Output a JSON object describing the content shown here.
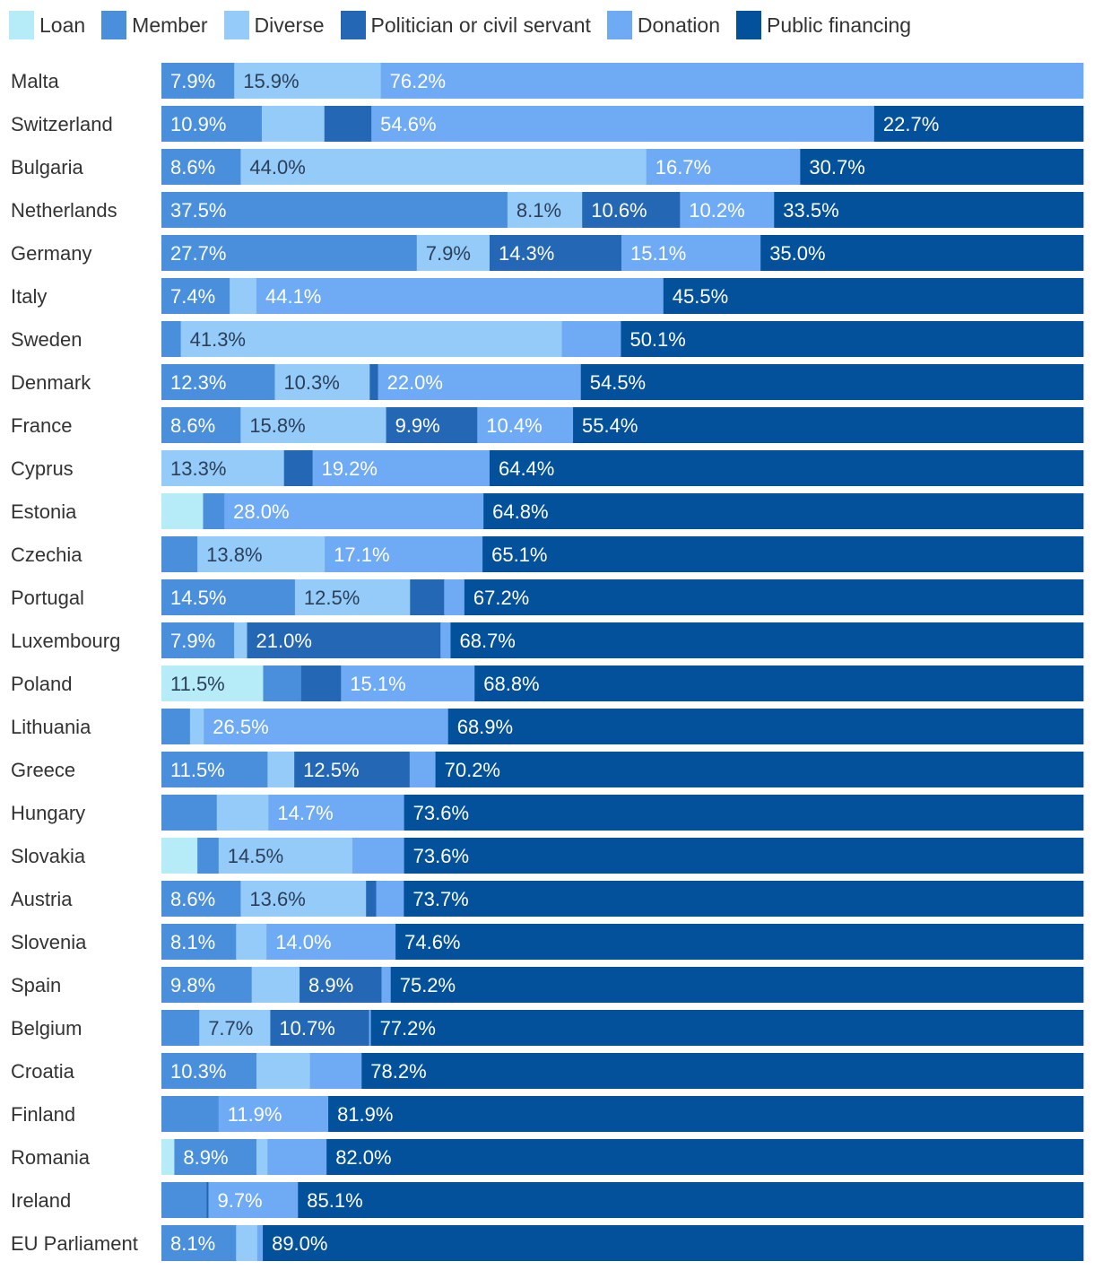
{
  "chart_data": {
    "type": "bar",
    "orientation": "horizontal",
    "stacked": true,
    "normalized_percent": true,
    "legend_position": "top-left",
    "colors": {
      "Loan": "#b5ecf8",
      "Member": "#4a8fdb",
      "Diverse": "#94cbf9",
      "Politician or civil servant": "#2468b5",
      "Donation": "#6faaf4",
      "Public financing": "#02519a"
    },
    "categories": [
      "Malta",
      "Switzerland",
      "Bulgaria",
      "Netherlands",
      "Germany",
      "Italy",
      "Sweden",
      "Denmark",
      "France",
      "Cyprus",
      "Estonia",
      "Czechia",
      "Portugal",
      "Luxembourg",
      "Poland",
      "Lithuania",
      "Greece",
      "Hungary",
      "Slovakia",
      "Austria",
      "Slovenia",
      "Spain",
      "Belgium",
      "Croatia",
      "Finland",
      "Romania",
      "Ireland",
      "EU Parliament"
    ],
    "series": [
      {
        "name": "Loan",
        "values": [
          0,
          0,
          0,
          0,
          0,
          0,
          0,
          0,
          0,
          0,
          4.5,
          0,
          0,
          0,
          11.5,
          0,
          0,
          0,
          3.9,
          0,
          0,
          0,
          0,
          0,
          0,
          1.4,
          0,
          0
        ]
      },
      {
        "name": "Member",
        "values": [
          7.9,
          10.9,
          8.6,
          37.5,
          27.7,
          7.4,
          2.1,
          12.3,
          8.6,
          0,
          2.3,
          3.9,
          14.5,
          7.9,
          4.3,
          3.1,
          11.5,
          6.0,
          2.3,
          8.6,
          8.1,
          9.8,
          4.1,
          10.3,
          6.2,
          8.9,
          4.9,
          8.1
        ]
      },
      {
        "name": "Diverse",
        "values": [
          15.9,
          6.8,
          44.0,
          8.1,
          7.9,
          2.9,
          41.3,
          10.3,
          15.8,
          13.3,
          0,
          13.8,
          12.5,
          1.4,
          0,
          1.5,
          2.9,
          5.6,
          14.5,
          13.6,
          3.3,
          5.2,
          7.7,
          5.8,
          0,
          1.2,
          0,
          2.3
        ]
      },
      {
        "name": "Politician or civil servant",
        "values": [
          0,
          5.1,
          0,
          10.6,
          14.3,
          0,
          0,
          0.9,
          9.9,
          3.1,
          0,
          0,
          3.7,
          21.0,
          4.5,
          0,
          12.5,
          0,
          0,
          1.1,
          0,
          8.9,
          10.7,
          0,
          0,
          0,
          0.2,
          0
        ]
      },
      {
        "name": "Donation",
        "values": [
          76.2,
          54.6,
          16.7,
          10.2,
          15.1,
          44.1,
          6.4,
          22.0,
          10.4,
          19.2,
          28.0,
          17.1,
          2.2,
          1.1,
          15.1,
          26.5,
          2.8,
          14.7,
          5.6,
          3.0,
          14.0,
          1.0,
          0.2,
          5.6,
          11.9,
          6.4,
          9.7,
          0.6
        ]
      },
      {
        "name": "Public financing",
        "values": [
          0,
          22.7,
          30.7,
          33.5,
          35.0,
          45.5,
          50.1,
          54.5,
          55.4,
          64.4,
          64.8,
          65.1,
          67.2,
          68.7,
          68.8,
          68.9,
          70.2,
          73.6,
          73.6,
          73.7,
          74.6,
          75.2,
          77.2,
          78.2,
          81.9,
          82.0,
          85.1,
          89.0
        ]
      }
    ],
    "data_labels": [
      [
        "",
        "7.9%",
        "15.9%",
        "",
        "76.2%",
        ""
      ],
      [
        "",
        "10.9%",
        "",
        "",
        "54.6%",
        "22.7%"
      ],
      [
        "",
        "8.6%",
        "44.0%",
        "",
        "16.7%",
        "30.7%"
      ],
      [
        "",
        "37.5%",
        "8.1%",
        "10.6%",
        "10.2%",
        "33.5%"
      ],
      [
        "",
        "27.7%",
        "7.9%",
        "14.3%",
        "15.1%",
        "35.0%"
      ],
      [
        "",
        "7.4%",
        "",
        "",
        "44.1%",
        "45.5%"
      ],
      [
        "",
        "",
        "41.3%",
        "",
        "",
        "50.1%"
      ],
      [
        "",
        "12.3%",
        "10.3%",
        "",
        "22.0%",
        "54.5%"
      ],
      [
        "",
        "8.6%",
        "15.8%",
        "9.9%",
        "10.4%",
        "55.4%"
      ],
      [
        "",
        "",
        "13.3%",
        "",
        "19.2%",
        "64.4%"
      ],
      [
        "",
        "",
        "",
        "",
        "28.0%",
        "64.8%"
      ],
      [
        "",
        "",
        "13.8%",
        "",
        "17.1%",
        "65.1%"
      ],
      [
        "",
        "14.5%",
        "12.5%",
        "",
        "",
        "67.2%"
      ],
      [
        "",
        "7.9%",
        "",
        "21.0%",
        "",
        "68.7%"
      ],
      [
        "11.5%",
        "",
        "",
        "",
        "15.1%",
        "68.8%"
      ],
      [
        "",
        "",
        "",
        "",
        "26.5%",
        "68.9%"
      ],
      [
        "",
        "11.5%",
        "",
        "12.5%",
        "",
        "70.2%"
      ],
      [
        "",
        "",
        "",
        "",
        "14.7%",
        "73.6%"
      ],
      [
        "",
        "",
        "14.5%",
        "",
        "",
        "73.6%"
      ],
      [
        "",
        "8.6%",
        "13.6%",
        "",
        "",
        "73.7%"
      ],
      [
        "",
        "8.1%",
        "",
        "",
        "14.0%",
        "74.6%"
      ],
      [
        "",
        "9.8%",
        "",
        "8.9%",
        "",
        "75.2%"
      ],
      [
        "",
        "",
        "7.7%",
        "10.7%",
        "",
        "77.2%"
      ],
      [
        "",
        "10.3%",
        "",
        "",
        "",
        "78.2%"
      ],
      [
        "",
        "",
        "",
        "",
        "11.9%",
        "81.9%"
      ],
      [
        "",
        "8.9%",
        "",
        "",
        "",
        "82.0%"
      ],
      [
        "",
        "",
        "",
        "",
        "9.7%",
        "85.1%"
      ],
      [
        "",
        "8.1%",
        "",
        "",
        "",
        "89.0%"
      ]
    ],
    "title": "",
    "xlabel": "",
    "ylabel": "",
    "xlim": [
      0,
      100
    ],
    "grid": false
  }
}
